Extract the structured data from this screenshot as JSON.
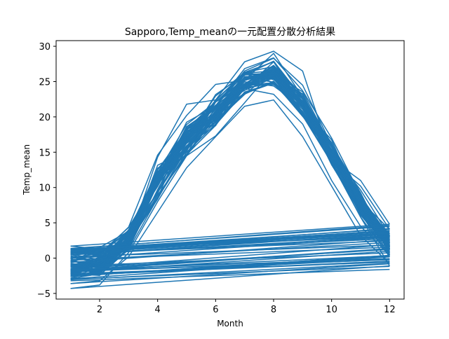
{
  "chart_data": {
    "type": "line",
    "title": "Sapporo,Temp_meanの一元配置分散分析結果",
    "xlabel": "Month",
    "ylabel": "Temp_mean",
    "xlim": [
      0.5,
      12.5
    ],
    "ylim": [
      -5.8,
      30.8
    ],
    "x_ticks": [
      2,
      4,
      6,
      8,
      10,
      12
    ],
    "y_ticks": [
      -5,
      0,
      5,
      10,
      15,
      20,
      25,
      30
    ],
    "grid": false,
    "legend": "none",
    "color": "#1f77b4",
    "x": [
      1,
      2,
      3,
      4,
      5,
      6,
      7,
      8,
      9,
      10,
      11,
      12
    ],
    "wrap_segments": [
      {
        "from": [
          1,
          -4.3
        ],
        "to": [
          12,
          -1.1
        ]
      },
      {
        "from": [
          1,
          -3.6
        ],
        "to": [
          12,
          -0.8
        ]
      },
      {
        "from": [
          1,
          1.7
        ],
        "to": [
          12,
          4.8
        ]
      },
      {
        "from": [
          1,
          1.2
        ],
        "to": [
          12,
          4.1
        ]
      },
      {
        "from": [
          1,
          -2.6
        ],
        "to": [
          12,
          0.4
        ]
      },
      {
        "from": [
          1,
          -0.6
        ],
        "to": [
          12,
          2.6
        ]
      },
      {
        "from": [
          1,
          -1.8
        ],
        "to": [
          12,
          1.3
        ]
      }
    ],
    "series_profiles": [
      [
        -3.6,
        -3.2,
        0.2,
        6.5,
        12.8,
        17.2,
        21.5,
        22.4,
        17.2,
        10.2,
        3.2,
        -0.8
      ],
      [
        -4.3,
        -3.8,
        0.8,
        8.0,
        14.5,
        17.3,
        22.0,
        26.8,
        22.5,
        13.5,
        5.8,
        -1.1
      ],
      [
        1.7,
        1.3,
        2.2,
        14.3,
        21.8,
        22.4,
        27.8,
        29.3,
        26.5,
        14.0,
        11.0,
        4.8
      ],
      [
        1.2,
        0.4,
        4.4,
        14.6,
        20.2,
        24.6,
        25.2,
        29.0,
        22.8,
        13.8,
        10.2,
        4.1
      ],
      [
        -2.6,
        -1.8,
        1.2,
        8.5,
        15.0,
        19.0,
        24.0,
        23.2,
        19.0,
        11.0,
        4.5,
        0.4
      ],
      [
        -0.6,
        1.5,
        3.8,
        12.5,
        17.5,
        21.5,
        26.5,
        28.3,
        24.5,
        16.0,
        8.5,
        2.6
      ],
      [
        -1.8,
        0.2,
        2.5,
        10.5,
        16.5,
        20.5,
        25.5,
        25.8,
        22.0,
        15.0,
        7.0,
        1.3
      ]
    ]
  }
}
